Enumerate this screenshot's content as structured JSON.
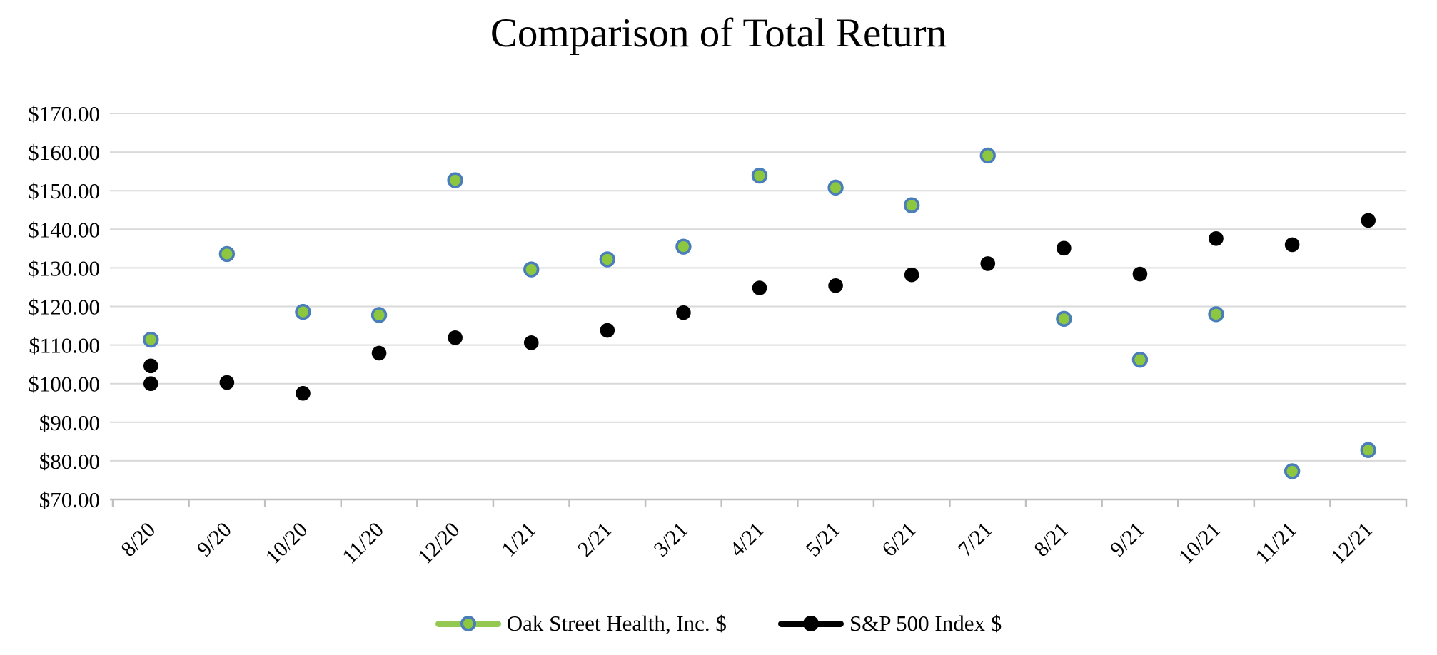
{
  "chart_data": {
    "type": "scatter",
    "title": "Comparison of Total Return",
    "categories": [
      "8/20",
      "9/20",
      "10/20",
      "11/20",
      "12/20",
      "1/21",
      "2/21",
      "3/21",
      "4/21",
      "5/21",
      "6/21",
      "7/21",
      "8/21",
      "9/21",
      "10/21",
      "11/21",
      "12/21"
    ],
    "y_axis": {
      "min": 70,
      "max": 170,
      "step": 10,
      "tick_labels": [
        "$170.00",
        "$160.00",
        "$150.00",
        "$140.00",
        "$130.00",
        "$120.00",
        "$110.00",
        "$100.00",
        "$90.00",
        "$80.00",
        "$70.00"
      ]
    },
    "series": [
      {
        "name": "Oak Street Health, Inc. $",
        "marker": {
          "fill": "#8dc63f",
          "stroke": "#4a7ebb"
        },
        "line_color": "#93c853",
        "values": [
          111.4,
          133.6,
          118.6,
          117.8,
          152.7,
          129.6,
          132.2,
          135.5,
          153.9,
          150.8,
          146.2,
          159.1,
          116.8,
          106.2,
          118.0,
          77.3,
          82.8
        ]
      },
      {
        "name": "S&P 500 Index $",
        "marker": {
          "fill": "#000000",
          "stroke": "#000000"
        },
        "line_color": "#000000",
        "values": [
          104.6,
          100.3,
          97.5,
          107.9,
          111.9,
          110.6,
          113.8,
          118.4,
          124.8,
          125.4,
          128.2,
          131.1,
          135.1,
          128.4,
          137.6,
          136.0,
          142.3
        ]
      }
    ],
    "extra_points": [
      {
        "category": "8/20",
        "value": 100.0,
        "color": "#000000"
      }
    ],
    "legend": {
      "position": "bottom"
    },
    "grid": {
      "horizontal": true,
      "vertical": false
    },
    "colors": {
      "gridline": "#d9d9d9",
      "axis": "#bfbfbf",
      "text": "#000000",
      "background": "#ffffff"
    }
  }
}
